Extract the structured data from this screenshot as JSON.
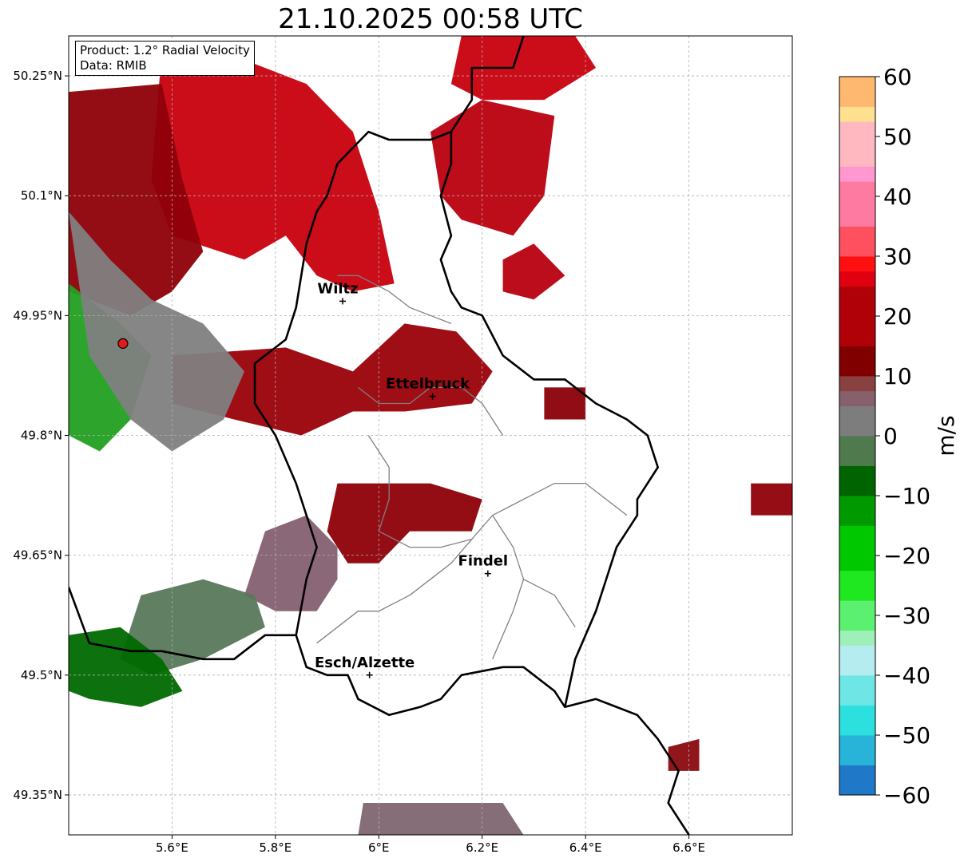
{
  "title": "21.10.2025 00:58 UTC",
  "info": {
    "product": "Product: 1.2° Radial Velocity",
    "data": "Data: RMIB"
  },
  "map": {
    "lon_range": [
      5.4,
      6.8
    ],
    "lat_range": [
      49.3,
      50.3
    ],
    "lon_ticks": [
      {
        "value": 5.6,
        "label": "5.6°E"
      },
      {
        "value": 5.8,
        "label": "5.8°E"
      },
      {
        "value": 6.0,
        "label": "6°E"
      },
      {
        "value": 6.2,
        "label": "6.2°E"
      },
      {
        "value": 6.4,
        "label": "6.4°E"
      },
      {
        "value": 6.6,
        "label": "6.6°E"
      }
    ],
    "lat_ticks": [
      {
        "value": 50.25,
        "label": "50.25°N"
      },
      {
        "value": 50.1,
        "label": "50.1°N"
      },
      {
        "value": 49.95,
        "label": "49.95°N"
      },
      {
        "value": 49.8,
        "label": "49.8°N"
      },
      {
        "value": 49.65,
        "label": "49.65°N"
      },
      {
        "value": 49.5,
        "label": "49.5°N"
      },
      {
        "value": 49.35,
        "label": "49.35°N"
      }
    ],
    "grid": true,
    "radar_site": {
      "lon": 5.505,
      "lat": 49.915,
      "color": "#e31a1c"
    },
    "cities": [
      {
        "name": "Wiltz",
        "lon": 5.93,
        "lat": 49.968
      },
      {
        "name": "Ettelbruck",
        "lon": 6.104,
        "lat": 49.849
      },
      {
        "name": "Findel",
        "lon": 6.211,
        "lat": 49.627
      },
      {
        "name": "Esch/Alzette",
        "lon": 5.982,
        "lat": 49.5
      }
    ]
  },
  "colorbar": {
    "label": "m/s",
    "min": -60,
    "max": 60,
    "ticks": [
      {
        "value": 60,
        "label": "60"
      },
      {
        "value": 50,
        "label": "50"
      },
      {
        "value": 40,
        "label": "40"
      },
      {
        "value": 30,
        "label": "30"
      },
      {
        "value": 20,
        "label": "20"
      },
      {
        "value": 10,
        "label": "10"
      },
      {
        "value": 0,
        "label": "0"
      },
      {
        "value": -10,
        "label": "−10"
      },
      {
        "value": -20,
        "label": "−20"
      },
      {
        "value": -30,
        "label": "−30"
      },
      {
        "value": -40,
        "label": "−40"
      },
      {
        "value": -50,
        "label": "−50"
      },
      {
        "value": -60,
        "label": "−60"
      }
    ],
    "stops": [
      {
        "v": -60,
        "c": "#1f78c8"
      },
      {
        "v": -55,
        "c": "#28b4d8"
      },
      {
        "v": -50,
        "c": "#2de0e0"
      },
      {
        "v": -45,
        "c": "#6ee6e6"
      },
      {
        "v": -40,
        "c": "#b4ecf0"
      },
      {
        "v": -36,
        "c": "#9ff0b8"
      },
      {
        "v": -32,
        "c": "#5cf070"
      },
      {
        "v": -28,
        "c": "#20e820"
      },
      {
        "v": -22,
        "c": "#00c800"
      },
      {
        "v": -16,
        "c": "#009a00"
      },
      {
        "v": -10,
        "c": "#006400"
      },
      {
        "v": -6,
        "c": "#4e7a4e"
      },
      {
        "v": 0,
        "c": "#7d7d7d"
      },
      {
        "v": 4,
        "c": "#86606a"
      },
      {
        "v": 8,
        "c": "#884040"
      },
      {
        "v": 9,
        "c": "#800000"
      },
      {
        "v": 16,
        "c": "#b00008"
      },
      {
        "v": 24,
        "c": "#e00010"
      },
      {
        "v": 28,
        "c": "#ff1010"
      },
      {
        "v": 30,
        "c": "#ff5060"
      },
      {
        "v": 36,
        "c": "#ff7aa0"
      },
      {
        "v": 42,
        "c": "#ff98d0"
      },
      {
        "v": 46,
        "c": "#ffb8c0"
      },
      {
        "v": 52,
        "c": "#ffe090"
      },
      {
        "v": 56,
        "c": "#ffb870"
      },
      {
        "v": 60,
        "c": "#ffa050"
      }
    ]
  },
  "echo_regions": [
    {
      "velocity": 18,
      "color": "#c8000e",
      "polygon": [
        [
          5.58,
          50.28
        ],
        [
          5.7,
          50.28
        ],
        [
          5.86,
          50.24
        ],
        [
          5.95,
          50.18
        ],
        [
          6.0,
          50.08
        ],
        [
          6.03,
          49.99
        ],
        [
          5.95,
          49.98
        ],
        [
          5.88,
          50.0
        ],
        [
          5.82,
          50.05
        ],
        [
          5.74,
          50.02
        ],
        [
          5.6,
          50.05
        ],
        [
          5.56,
          50.12
        ]
      ]
    },
    {
      "velocity": 14,
      "color": "#8e0008",
      "polygon": [
        [
          5.4,
          50.23
        ],
        [
          5.58,
          50.24
        ],
        [
          5.62,
          50.12
        ],
        [
          5.66,
          50.03
        ],
        [
          5.6,
          49.98
        ],
        [
          5.52,
          49.95
        ],
        [
          5.4,
          49.98
        ]
      ]
    },
    {
      "velocity": 18,
      "color": "#c8000e",
      "polygon": [
        [
          6.16,
          50.3
        ],
        [
          6.38,
          50.3
        ],
        [
          6.42,
          50.26
        ],
        [
          6.32,
          50.22
        ],
        [
          6.2,
          50.22
        ],
        [
          6.14,
          50.24
        ]
      ]
    },
    {
      "velocity": 16,
      "color": "#bb000e",
      "polygon": [
        [
          6.1,
          50.18
        ],
        [
          6.2,
          50.22
        ],
        [
          6.34,
          50.2
        ],
        [
          6.32,
          50.1
        ],
        [
          6.26,
          50.05
        ],
        [
          6.16,
          50.07
        ],
        [
          6.12,
          50.1
        ]
      ]
    },
    {
      "velocity": 16,
      "color": "#b80010",
      "polygon": [
        [
          6.24,
          50.02
        ],
        [
          6.3,
          50.04
        ],
        [
          6.36,
          50.0
        ],
        [
          6.3,
          49.97
        ],
        [
          6.24,
          49.98
        ]
      ]
    },
    {
      "velocity": 14,
      "color": "#9a0008",
      "polygon": [
        [
          5.6,
          49.9
        ],
        [
          5.82,
          49.91
        ],
        [
          5.95,
          49.88
        ],
        [
          6.05,
          49.94
        ],
        [
          6.15,
          49.93
        ],
        [
          6.22,
          49.88
        ],
        [
          6.18,
          49.84
        ],
        [
          6.05,
          49.83
        ],
        [
          5.95,
          49.83
        ],
        [
          5.85,
          49.8
        ],
        [
          5.72,
          49.82
        ],
        [
          5.6,
          49.84
        ]
      ]
    },
    {
      "velocity": 12,
      "color": "#8a0008",
      "polygon": [
        [
          6.32,
          49.86
        ],
        [
          6.4,
          49.86
        ],
        [
          6.4,
          49.82
        ],
        [
          6.32,
          49.82
        ]
      ]
    },
    {
      "velocity": 12,
      "color": "#8e0008",
      "polygon": [
        [
          5.92,
          49.74
        ],
        [
          6.02,
          49.74
        ],
        [
          6.1,
          49.74
        ],
        [
          6.2,
          49.72
        ],
        [
          6.18,
          49.68
        ],
        [
          6.06,
          49.68
        ],
        [
          6.0,
          49.64
        ],
        [
          5.94,
          49.64
        ],
        [
          5.9,
          49.68
        ]
      ]
    },
    {
      "velocity": 6,
      "color": "#856070",
      "polygon": [
        [
          5.78,
          49.68
        ],
        [
          5.86,
          49.7
        ],
        [
          5.92,
          49.66
        ],
        [
          5.92,
          49.62
        ],
        [
          5.88,
          49.58
        ],
        [
          5.8,
          49.58
        ],
        [
          5.74,
          49.6
        ]
      ]
    },
    {
      "velocity": -4,
      "color": "#58785a",
      "polygon": [
        [
          5.54,
          49.6
        ],
        [
          5.66,
          49.62
        ],
        [
          5.76,
          49.6
        ],
        [
          5.78,
          49.56
        ],
        [
          5.66,
          49.52
        ],
        [
          5.56,
          49.5
        ],
        [
          5.5,
          49.52
        ]
      ]
    },
    {
      "velocity": -10,
      "color": "#006a00",
      "polygon": [
        [
          5.4,
          49.55
        ],
        [
          5.5,
          49.56
        ],
        [
          5.58,
          49.52
        ],
        [
          5.62,
          49.48
        ],
        [
          5.54,
          49.46
        ],
        [
          5.44,
          49.47
        ],
        [
          5.4,
          49.48
        ]
      ]
    },
    {
      "velocity": -18,
      "color": "#22a022",
      "polygon": [
        [
          5.4,
          49.99
        ],
        [
          5.5,
          49.94
        ],
        [
          5.56,
          49.9
        ],
        [
          5.52,
          49.82
        ],
        [
          5.46,
          49.78
        ],
        [
          5.4,
          49.8
        ]
      ]
    },
    {
      "velocity": 0,
      "color": "#7f7f7f",
      "polygon": [
        [
          5.4,
          50.08
        ],
        [
          5.48,
          50.02
        ],
        [
          5.56,
          49.97
        ],
        [
          5.66,
          49.94
        ],
        [
          5.74,
          49.88
        ],
        [
          5.7,
          49.82
        ],
        [
          5.6,
          49.78
        ],
        [
          5.52,
          49.82
        ],
        [
          5.44,
          49.9
        ]
      ]
    },
    {
      "velocity": 4,
      "color": "#7e6670",
      "polygon": [
        [
          5.97,
          49.34
        ],
        [
          6.08,
          49.34
        ],
        [
          6.24,
          49.34
        ],
        [
          6.28,
          49.3
        ],
        [
          5.96,
          49.3
        ]
      ]
    },
    {
      "velocity": 12,
      "color": "#900008",
      "polygon": [
        [
          6.72,
          49.74
        ],
        [
          6.8,
          49.74
        ],
        [
          6.8,
          49.7
        ],
        [
          6.72,
          49.7
        ]
      ]
    },
    {
      "velocity": 10,
      "color": "#8a0a10",
      "polygon": [
        [
          6.56,
          49.41
        ],
        [
          6.62,
          49.42
        ],
        [
          6.62,
          49.38
        ],
        [
          6.56,
          49.38
        ]
      ]
    }
  ],
  "borders": {
    "national": [
      [
        [
          5.4,
          49.61
        ],
        [
          5.44,
          49.54
        ],
        [
          5.52,
          49.53
        ],
        [
          5.58,
          49.53
        ],
        [
          5.66,
          49.52
        ],
        [
          5.72,
          49.52
        ],
        [
          5.78,
          49.55
        ],
        [
          5.84,
          49.55
        ],
        [
          5.86,
          49.51
        ],
        [
          5.9,
          49.5
        ],
        [
          5.94,
          49.5
        ],
        [
          5.96,
          49.47
        ],
        [
          6.02,
          49.45
        ],
        [
          6.08,
          49.46
        ],
        [
          6.12,
          49.47
        ],
        [
          6.16,
          49.5
        ],
        [
          6.24,
          49.51
        ],
        [
          6.28,
          49.51
        ],
        [
          6.34,
          49.48
        ],
        [
          6.36,
          49.46
        ],
        [
          6.42,
          49.47
        ],
        [
          6.5,
          49.45
        ],
        [
          6.54,
          49.42
        ],
        [
          6.58,
          49.38
        ],
        [
          6.56,
          49.34
        ],
        [
          6.6,
          49.3
        ]
      ],
      [
        [
          6.36,
          49.46
        ],
        [
          6.38,
          49.52
        ],
        [
          6.42,
          49.58
        ],
        [
          6.46,
          49.66
        ],
        [
          6.5,
          49.7
        ],
        [
          6.5,
          49.72
        ],
        [
          6.54,
          49.76
        ],
        [
          6.52,
          49.8
        ],
        [
          6.48,
          49.82
        ],
        [
          6.42,
          49.84
        ],
        [
          6.36,
          49.87
        ],
        [
          6.3,
          49.87
        ],
        [
          6.24,
          49.9
        ],
        [
          6.2,
          49.95
        ],
        [
          6.16,
          49.96
        ],
        [
          6.14,
          49.98
        ],
        [
          6.12,
          50.02
        ],
        [
          6.14,
          50.05
        ],
        [
          6.12,
          50.1
        ],
        [
          6.14,
          50.14
        ],
        [
          6.14,
          50.18
        ],
        [
          6.1,
          50.17
        ],
        [
          6.06,
          50.17
        ],
        [
          6.02,
          50.17
        ],
        [
          5.98,
          50.18
        ],
        [
          5.95,
          50.16
        ],
        [
          5.92,
          50.14
        ],
        [
          5.9,
          50.1
        ],
        [
          5.88,
          50.08
        ],
        [
          5.86,
          50.04
        ],
        [
          5.84,
          49.96
        ],
        [
          5.82,
          49.92
        ],
        [
          5.76,
          49.89
        ],
        [
          5.76,
          49.84
        ],
        [
          5.8,
          49.8
        ],
        [
          5.84,
          49.74
        ],
        [
          5.86,
          49.7
        ],
        [
          5.88,
          49.66
        ],
        [
          5.86,
          49.62
        ],
        [
          5.84,
          49.55
        ]
      ],
      [
        [
          6.14,
          50.18
        ],
        [
          6.18,
          50.22
        ],
        [
          6.18,
          50.26
        ],
        [
          6.26,
          50.26
        ],
        [
          6.28,
          50.3
        ]
      ]
    ],
    "cantonal": [
      [
        [
          5.92,
          50.0
        ],
        [
          5.96,
          50.0
        ],
        [
          6.02,
          49.98
        ],
        [
          6.06,
          49.96
        ],
        [
          6.1,
          49.95
        ],
        [
          6.14,
          49.94
        ]
      ],
      [
        [
          5.96,
          49.86
        ],
        [
          6.0,
          49.84
        ],
        [
          6.06,
          49.84
        ],
        [
          6.1,
          49.86
        ],
        [
          6.16,
          49.86
        ],
        [
          6.2,
          49.84
        ],
        [
          6.24,
          49.8
        ]
      ],
      [
        [
          5.98,
          49.8
        ],
        [
          6.02,
          49.76
        ],
        [
          6.02,
          49.72
        ],
        [
          6.0,
          49.68
        ],
        [
          6.06,
          49.66
        ],
        [
          6.12,
          49.66
        ],
        [
          6.18,
          49.67
        ],
        [
          6.22,
          49.7
        ],
        [
          6.28,
          49.72
        ],
        [
          6.34,
          49.74
        ],
        [
          6.4,
          49.74
        ],
        [
          6.44,
          49.72
        ],
        [
          6.48,
          49.7
        ]
      ],
      [
        [
          6.18,
          49.67
        ],
        [
          6.14,
          49.64
        ],
        [
          6.1,
          49.62
        ],
        [
          6.06,
          49.6
        ],
        [
          6.0,
          49.58
        ],
        [
          5.96,
          49.58
        ],
        [
          5.92,
          49.56
        ],
        [
          5.88,
          49.54
        ]
      ],
      [
        [
          6.22,
          49.7
        ],
        [
          6.26,
          49.66
        ],
        [
          6.28,
          49.62
        ],
        [
          6.26,
          49.58
        ],
        [
          6.24,
          49.55
        ],
        [
          6.22,
          49.52
        ]
      ],
      [
        [
          6.28,
          49.62
        ],
        [
          6.34,
          49.6
        ],
        [
          6.38,
          49.56
        ]
      ]
    ]
  }
}
